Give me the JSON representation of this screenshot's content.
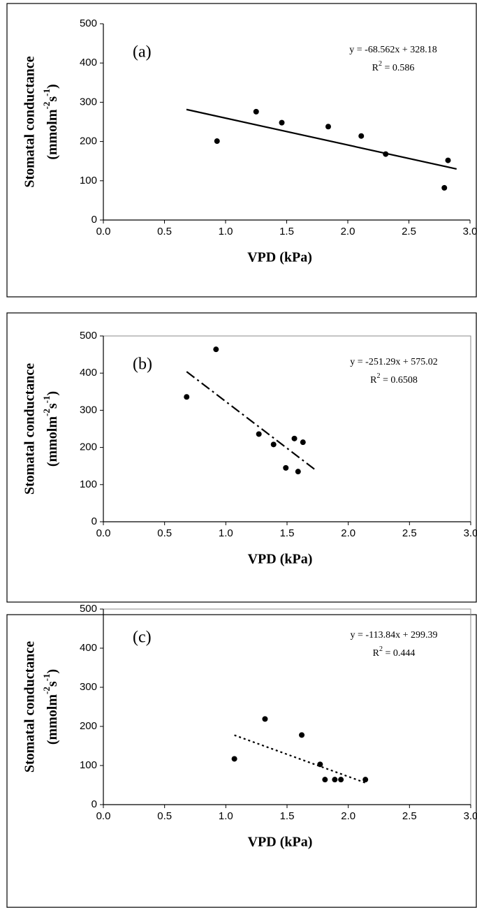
{
  "chart_data": [
    {
      "type": "scatter",
      "panel_label": "(a)",
      "xlabel": "VPD (kPa)",
      "ylabel": [
        "Stomatal conductance",
        "(mmolm",
        "-2",
        "s",
        "-1",
        ")"
      ],
      "equation": "y = -68.562x + 328.18",
      "r2": [
        "R",
        "2",
        " = 0.586"
      ],
      "x": [
        0.93,
        1.25,
        1.46,
        1.84,
        2.11,
        2.31,
        2.79,
        2.82
      ],
      "values": [
        201,
        276,
        248,
        238,
        214,
        168,
        82,
        152
      ],
      "color": "#000000",
      "trendline": {
        "x": [
          0.68,
          2.89
        ],
        "values": [
          281.6,
          130
        ],
        "style": "solid"
      },
      "plot_border": false,
      "xlim": [
        0,
        3
      ],
      "xticks": [
        {
          "value": 0,
          "label": "0.0"
        },
        {
          "value": 0.5,
          "label": "0.5"
        },
        {
          "value": 1,
          "label": "1.0"
        },
        {
          "value": 1.5,
          "label": "1.5"
        },
        {
          "value": 2,
          "label": "2.0"
        },
        {
          "value": 2.5,
          "label": "2.5"
        },
        {
          "value": 3,
          "label": "3.0"
        }
      ],
      "ylim": [
        0,
        500
      ],
      "yticks": [
        0,
        100,
        200,
        300,
        400,
        500
      ]
    },
    {
      "type": "scatter",
      "panel_label": "(b)",
      "xlabel": "VPD (kPa)",
      "ylabel": [
        "Stomatal conductance",
        "(mmolm",
        "-2",
        "s",
        "-1",
        ")"
      ],
      "equation": "y = -251.29x + 575.02",
      "r2": [
        "R",
        "2",
        " = 0.6508"
      ],
      "x": [
        0.68,
        0.92,
        1.27,
        1.39,
        1.49,
        1.56,
        1.59,
        1.63
      ],
      "values": [
        336,
        464,
        236,
        208,
        145,
        224,
        135,
        214
      ],
      "color": "#000000",
      "trendline": {
        "x": [
          0.68,
          1.73
        ],
        "values": [
          404,
          140
        ],
        "style": "dashdot"
      },
      "plot_border": true,
      "xlim": [
        0,
        3
      ],
      "xticks": [
        {
          "value": 0,
          "label": "0.0"
        },
        {
          "value": 0.5,
          "label": "0.5"
        },
        {
          "value": 1,
          "label": "1.0"
        },
        {
          "value": 1.5,
          "label": "1.5"
        },
        {
          "value": 2,
          "label": "2.0"
        },
        {
          "value": 2.5,
          "label": "2.5"
        },
        {
          "value": 3,
          "label": "3.0"
        }
      ],
      "ylim": [
        0,
        500
      ],
      "yticks": [
        0,
        100,
        200,
        300,
        400,
        500
      ]
    },
    {
      "type": "scatter",
      "panel_label": "(c)",
      "xlabel": "VPD (kPa)",
      "ylabel": [
        "Stomatal conductance",
        "(mmolm",
        "-2",
        "s",
        "-1",
        ")"
      ],
      "equation": "y = -113.84x + 299.39",
      "r2": [
        "R",
        "2",
        " = 0.444"
      ],
      "x": [
        1.07,
        1.32,
        1.62,
        1.77,
        1.81,
        1.89,
        1.94,
        2.14
      ],
      "values": [
        117,
        219,
        178,
        103,
        64,
        64,
        64,
        64
      ],
      "color": "#000000",
      "trendline": {
        "x": [
          1.07,
          2.14
        ],
        "values": [
          177.6,
          55.8
        ],
        "style": "dotted"
      },
      "plot_border": true,
      "xlim": [
        0,
        3
      ],
      "xticks": [
        {
          "value": 0,
          "label": "0.0"
        },
        {
          "value": 0.5,
          "label": "0.5"
        },
        {
          "value": 1,
          "label": "1.0"
        },
        {
          "value": 1.5,
          "label": "1.5"
        },
        {
          "value": 2,
          "label": "2.0"
        },
        {
          "value": 2.5,
          "label": "2.5"
        },
        {
          "value": 3,
          "label": "3.0"
        }
      ],
      "ylim": [
        0,
        500
      ],
      "yticks": [
        0,
        100,
        200,
        300,
        400,
        500
      ]
    }
  ]
}
